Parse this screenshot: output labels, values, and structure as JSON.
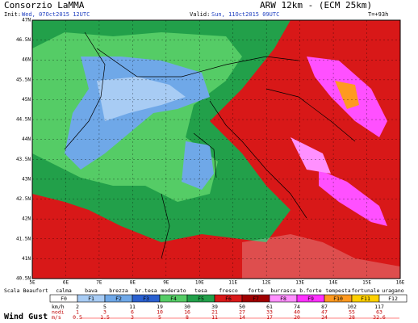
{
  "header": {
    "title": "Consorzio LaMMA",
    "model": "ARW 12km - (ECM 25km)",
    "init_label": "Init:",
    "init": "Wed, 07Oct2015 12UTC",
    "valid_label": "Valid:",
    "valid": "Sun, 11Oct2015 09UTC",
    "lead": "T=+93h"
  },
  "map": {
    "lat_labels": [
      "47N",
      "46.5N",
      "46N",
      "45.5N",
      "45N",
      "44.5N",
      "44N",
      "43.5N",
      "43N",
      "42.5N",
      "42N",
      "41.5N",
      "41N",
      "40.5N"
    ],
    "lon_labels": [
      "5E",
      "6E",
      "7E",
      "8E",
      "9E",
      "10E",
      "11E",
      "12E",
      "13E",
      "14E",
      "15E",
      "16E"
    ]
  },
  "legend": {
    "scale_title": "Scala Beaufort",
    "variable": "Wind Gust",
    "names": [
      "calma",
      "bava",
      "brezza",
      "br.tesa",
      "moderato",
      "tesa",
      "fresco",
      "forte",
      "burrasca",
      "b.forte",
      "tempesta",
      "fortunale",
      "uragano"
    ],
    "forces": [
      "F0",
      "F1",
      "F2",
      "F3",
      "F4",
      "F5",
      "F6",
      "F7",
      "F8",
      "F9",
      "F10",
      "F11",
      "F12"
    ],
    "unit_labels": [
      "km/h",
      "nodi",
      "m/s"
    ],
    "kmh": [
      "2",
      "5",
      "11",
      "19",
      "30",
      "39",
      "50",
      "61",
      "74",
      "87",
      "102",
      "117"
    ],
    "knots": [
      "1",
      "3",
      "6",
      "10",
      "16",
      "21",
      "27",
      "33",
      "40",
      "47",
      "55",
      "63"
    ],
    "ms": [
      "0.5",
      "1.5",
      "3",
      "5",
      "8",
      "11",
      "14",
      "17",
      "20",
      "24",
      "28",
      "32.6"
    ]
  }
}
